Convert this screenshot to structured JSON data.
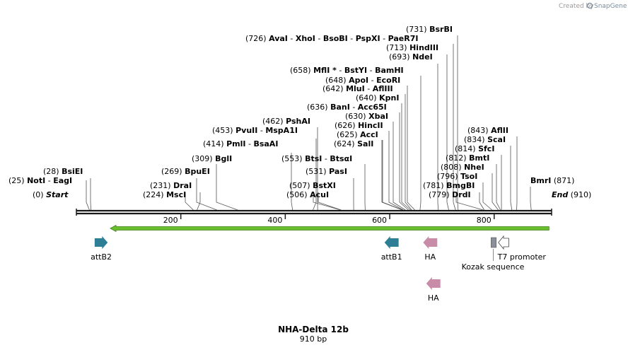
{
  "credit": {
    "prefix": "Created by",
    "brand": "SnapGene"
  },
  "title": "NHA-Delta 12b",
  "length_label": "910 bp",
  "sequence_length": 910,
  "colors": {
    "backbone": "#1a1a1a",
    "orf_fill": "#6abf2f",
    "orf_stroke": "#3d7f16",
    "attb": "#2e7f96",
    "ha": "#c98ca8",
    "kozak": "#8a8f99",
    "t7": "#ffffff",
    "site_line": "#555555"
  },
  "ticks": [
    {
      "label": "200",
      "bp": 200
    },
    {
      "label": "400",
      "bp": 400
    },
    {
      "label": "600",
      "bp": 600
    },
    {
      "label": "800",
      "bp": 800
    }
  ],
  "site_groups": [
    {
      "id": "start",
      "pos": 0,
      "pos_label": "(0)",
      "names": [
        "Start"
      ],
      "italic": true,
      "line": false
    },
    {
      "id": "mscI",
      "pos": 224,
      "pos_label": "(224)",
      "names": [
        "MscI"
      ]
    },
    {
      "id": "draI",
      "pos": 231,
      "pos_label": "(231)",
      "names": [
        "DraI"
      ]
    },
    {
      "id": "notI",
      "pos": 25,
      "pos_label": "(25)",
      "names": [
        "NotI",
        "EagI"
      ]
    },
    {
      "id": "bsiEI",
      "pos": 28,
      "pos_label": "(28)",
      "names": [
        "BsiEI"
      ]
    },
    {
      "id": "bpuEI",
      "pos": 269,
      "pos_label": "(269)",
      "names": [
        "BpuEI"
      ]
    },
    {
      "id": "bglI",
      "pos": 309,
      "pos_label": "(309)",
      "names": [
        "BglI"
      ]
    },
    {
      "id": "pmlI",
      "pos": 414,
      "pos_label": "(414)",
      "names": [
        "PmlI",
        "BsaAI"
      ]
    },
    {
      "id": "pvuII",
      "pos": 453,
      "pos_label": "(453)",
      "names": [
        "PvuII",
        "MspA1I"
      ]
    },
    {
      "id": "pshAI",
      "pos": 462,
      "pos_label": "(462)",
      "names": [
        "PshAI"
      ]
    },
    {
      "id": "acuI",
      "pos": 506,
      "pos_label": "(506)",
      "names": [
        "AcuI"
      ]
    },
    {
      "id": "bstXI",
      "pos": 507,
      "pos_label": "(507)",
      "names": [
        "BstXI"
      ]
    },
    {
      "id": "pasI",
      "pos": 531,
      "pos_label": "(531)",
      "names": [
        "PasI"
      ]
    },
    {
      "id": "btsI",
      "pos": 553,
      "pos_label": "(553)",
      "names": [
        "BtsI",
        "BtsαI"
      ]
    },
    {
      "id": "salI",
      "pos": 624,
      "pos_label": "(624)",
      "names": [
        "SalI"
      ]
    },
    {
      "id": "accI",
      "pos": 625,
      "pos_label": "(625)",
      "names": [
        "AccI"
      ]
    },
    {
      "id": "hincII",
      "pos": 626,
      "pos_label": "(626)",
      "names": [
        "HincII"
      ]
    },
    {
      "id": "xbaI",
      "pos": 630,
      "pos_label": "(630)",
      "names": [
        "XbaI"
      ]
    },
    {
      "id": "banI",
      "pos": 636,
      "pos_label": "(636)",
      "names": [
        "BanI",
        "Acc65I"
      ]
    },
    {
      "id": "kpnI",
      "pos": 640,
      "pos_label": "(640)",
      "names": [
        "KpnI"
      ]
    },
    {
      "id": "mluI",
      "pos": 642,
      "pos_label": "(642)",
      "names": [
        "MluI",
        "AflIII"
      ]
    },
    {
      "id": "apoI",
      "pos": 648,
      "pos_label": "(648)",
      "names": [
        "ApoI",
        "EcoRI"
      ]
    },
    {
      "id": "mflI",
      "pos": 658,
      "pos_label": "(658)",
      "names": [
        "MflI *",
        "BstYI",
        "BamHI"
      ]
    },
    {
      "id": "ndeI",
      "pos": 693,
      "pos_label": "(693)",
      "names": [
        "NdeI"
      ]
    },
    {
      "id": "hindIII",
      "pos": 713,
      "pos_label": "(713)",
      "names": [
        "HindIII"
      ]
    },
    {
      "id": "avaI",
      "pos": 726,
      "pos_label": "(726)",
      "names": [
        "AvaI",
        "XhoI",
        "BsoBI",
        "PspXI",
        "PaeR7I"
      ]
    },
    {
      "id": "bsrBI",
      "pos": 731,
      "pos_label": "(731)",
      "names": [
        "BsrBI"
      ]
    },
    {
      "id": "drdI",
      "pos": 779,
      "pos_label": "(779)",
      "names": [
        "DrdI"
      ]
    },
    {
      "id": "bmgBI",
      "pos": 781,
      "pos_label": "(781)",
      "names": [
        "BmgBI"
      ]
    },
    {
      "id": "tsoI",
      "pos": 796,
      "pos_label": "(796)",
      "names": [
        "TsoI"
      ]
    },
    {
      "id": "nheI",
      "pos": 808,
      "pos_label": "(808)",
      "names": [
        "NheI"
      ]
    },
    {
      "id": "bmtI",
      "pos": 812,
      "pos_label": "(812)",
      "names": [
        "BmtI"
      ]
    },
    {
      "id": "sfcI",
      "pos": 814,
      "pos_label": "(814)",
      "names": [
        "SfcI"
      ]
    },
    {
      "id": "scaI",
      "pos": 834,
      "pos_label": "(834)",
      "names": [
        "ScaI"
      ]
    },
    {
      "id": "aflII",
      "pos": 843,
      "pos_label": "(843)",
      "names": [
        "AflII"
      ]
    },
    {
      "id": "bmrI",
      "pos": 871,
      "pos_label": "(871)",
      "names": [
        "BmrI"
      ],
      "pos_after": true
    },
    {
      "id": "end",
      "pos": 910,
      "pos_label": "(910)",
      "names": [
        "End"
      ],
      "italic": true,
      "pos_after": true,
      "line": false
    }
  ],
  "features": [
    {
      "id": "orf",
      "type": "orf",
      "start": 65,
      "end": 905,
      "direction": "reverse",
      "label": ""
    },
    {
      "id": "attB2",
      "type": "attb",
      "start": 35,
      "end": 60,
      "direction": "forward",
      "label": "attB2"
    },
    {
      "id": "attB1",
      "type": "attb",
      "start": 590,
      "end": 617,
      "direction": "reverse",
      "label": "attB1"
    },
    {
      "id": "ha1",
      "type": "ha",
      "start": 664,
      "end": 691,
      "direction": "reverse",
      "label": "HA"
    },
    {
      "id": "kozak",
      "type": "kozak",
      "start": 794,
      "end": 804,
      "direction": "none",
      "label": "Kozak sequence"
    },
    {
      "id": "t7",
      "type": "t7",
      "start": 808,
      "end": 828,
      "direction": "reverse",
      "label": "T7 promoter"
    },
    {
      "id": "ha2",
      "type": "ha",
      "start": 670,
      "end": 697,
      "direction": "reverse",
      "label": "HA"
    }
  ]
}
